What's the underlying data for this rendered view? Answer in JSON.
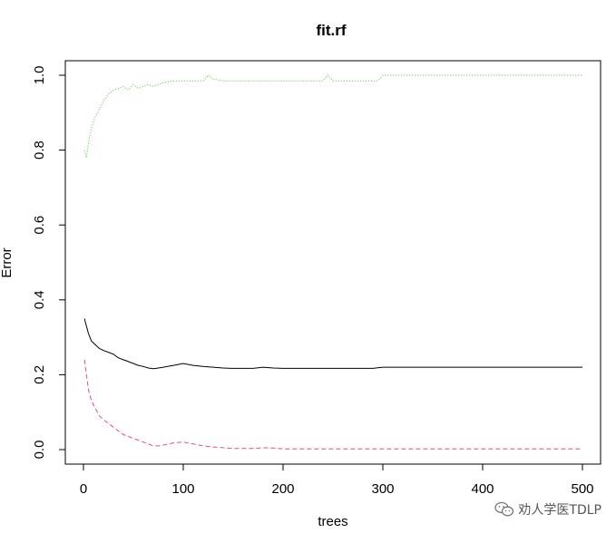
{
  "chart_data": {
    "type": "line",
    "title": "fit.rf",
    "xlabel": "trees",
    "ylabel": "Error",
    "xlim": [
      0,
      500
    ],
    "ylim": [
      0.0,
      1.0
    ],
    "xticks": [
      0,
      100,
      200,
      300,
      400,
      500
    ],
    "yticks": [
      0.0,
      0.2,
      0.4,
      0.6,
      0.8,
      1.0
    ],
    "ytick_labels": [
      "0.0",
      "0.2",
      "0.4",
      "0.6",
      "0.8",
      "1.0"
    ],
    "legend": "none",
    "grid": false,
    "series": [
      {
        "color": "#000000",
        "dash": "solid",
        "x": [
          1,
          3,
          5,
          8,
          12,
          16,
          20,
          25,
          30,
          35,
          40,
          45,
          50,
          55,
          60,
          65,
          70,
          75,
          80,
          90,
          100,
          110,
          120,
          130,
          140,
          150,
          160,
          170,
          180,
          190,
          200,
          220,
          240,
          260,
          280,
          290,
          300,
          350,
          400,
          450,
          500
        ],
        "y": [
          0.35,
          0.33,
          0.31,
          0.29,
          0.28,
          0.27,
          0.265,
          0.26,
          0.255,
          0.245,
          0.24,
          0.235,
          0.23,
          0.225,
          0.222,
          0.218,
          0.216,
          0.218,
          0.22,
          0.225,
          0.23,
          0.225,
          0.222,
          0.22,
          0.218,
          0.217,
          0.217,
          0.217,
          0.22,
          0.218,
          0.217,
          0.217,
          0.217,
          0.217,
          0.217,
          0.217,
          0.22,
          0.22,
          0.22,
          0.22,
          0.22
        ]
      },
      {
        "color": "#df536b",
        "dash": "dashed",
        "x": [
          1,
          3,
          5,
          8,
          12,
          16,
          20,
          25,
          30,
          35,
          40,
          45,
          50,
          55,
          60,
          65,
          70,
          75,
          80,
          90,
          100,
          110,
          120,
          130,
          140,
          150,
          160,
          170,
          180,
          190,
          200,
          250,
          300,
          350,
          400,
          450,
          500
        ],
        "y": [
          0.24,
          0.2,
          0.16,
          0.13,
          0.11,
          0.09,
          0.08,
          0.07,
          0.06,
          0.05,
          0.04,
          0.035,
          0.03,
          0.025,
          0.02,
          0.015,
          0.01,
          0.01,
          0.012,
          0.018,
          0.02,
          0.015,
          0.01,
          0.007,
          0.005,
          0.003,
          0.003,
          0.003,
          0.005,
          0.004,
          0.002,
          0.002,
          0.002,
          0.002,
          0.002,
          0.002,
          0.002
        ]
      },
      {
        "color": "#61d04f",
        "dash": "dotted",
        "x": [
          1,
          3,
          5,
          8,
          12,
          16,
          20,
          25,
          30,
          35,
          40,
          45,
          50,
          55,
          60,
          65,
          70,
          75,
          80,
          90,
          100,
          110,
          120,
          125,
          130,
          140,
          150,
          160,
          180,
          200,
          240,
          245,
          250,
          280,
          295,
          300,
          350,
          400,
          450,
          500
        ],
        "y": [
          0.8,
          0.78,
          0.82,
          0.86,
          0.89,
          0.91,
          0.93,
          0.95,
          0.96,
          0.965,
          0.97,
          0.96,
          0.975,
          0.965,
          0.97,
          0.975,
          0.97,
          0.975,
          0.98,
          0.985,
          0.985,
          0.985,
          0.985,
          1.0,
          0.99,
          0.985,
          0.985,
          0.985,
          0.985,
          0.985,
          0.985,
          1.0,
          0.985,
          0.985,
          0.985,
          1.0,
          1.0,
          1.0,
          1.0,
          1.0
        ]
      }
    ]
  },
  "watermark": {
    "icon": "wechat-icon",
    "text": "劝人学医TDLP"
  }
}
